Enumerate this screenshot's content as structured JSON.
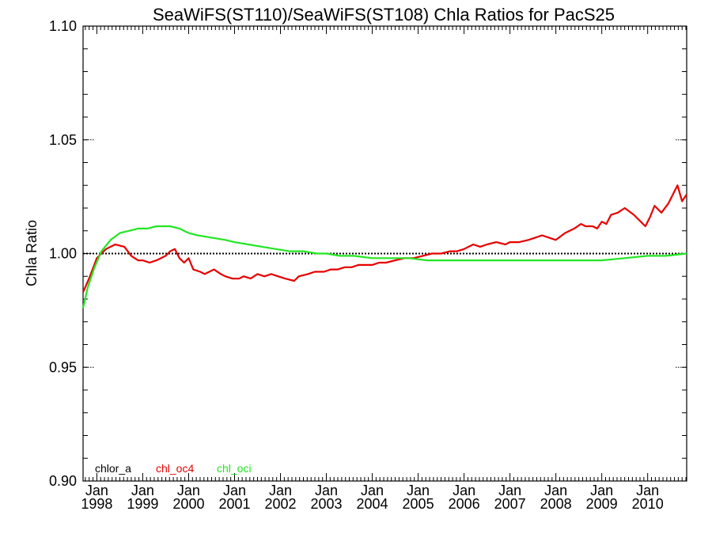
{
  "chart_data": {
    "type": "line",
    "title": "SeaWiFS(ST110)/SeaWiFS(ST108)  Chla Ratios for PacS25",
    "xlabel": "",
    "ylabel": "Chla Ratio",
    "xlim": [
      1997.7,
      2010.85
    ],
    "ylim": [
      0.9,
      1.1
    ],
    "y_ticks": [
      "0.90",
      "0.95",
      "1.00",
      "1.05",
      "1.10"
    ],
    "x_ticks": [
      {
        "month": "Jan",
        "year": "1998"
      },
      {
        "month": "Jan",
        "year": "1999"
      },
      {
        "month": "Jan",
        "year": "2000"
      },
      {
        "month": "Jan",
        "year": "2001"
      },
      {
        "month": "Jan",
        "year": "2002"
      },
      {
        "month": "Jan",
        "year": "2003"
      },
      {
        "month": "Jan",
        "year": "2004"
      },
      {
        "month": "Jan",
        "year": "2005"
      },
      {
        "month": "Jan",
        "year": "2006"
      },
      {
        "month": "Jan",
        "year": "2007"
      },
      {
        "month": "Jan",
        "year": "2008"
      },
      {
        "month": "Jan",
        "year": "2009"
      },
      {
        "month": "Jan",
        "year": "2010"
      }
    ],
    "series": [
      {
        "name": "chlor_a",
        "color": "#000000",
        "style": "dotted",
        "x": [
          1997.7,
          2010.85
        ],
        "values": [
          1.0,
          1.0
        ]
      },
      {
        "name": "chl_oc4",
        "color": "#e60000",
        "x": [
          1997.7,
          1997.85,
          1998.0,
          1998.2,
          1998.4,
          1998.6,
          1998.75,
          1998.9,
          1999.0,
          1999.15,
          1999.3,
          1999.4,
          1999.5,
          1999.6,
          1999.7,
          1999.8,
          1999.9,
          2000.0,
          2000.1,
          2000.25,
          2000.35,
          2000.45,
          2000.55,
          2000.7,
          2000.8,
          2000.95,
          2001.1,
          2001.2,
          2001.35,
          2001.5,
          2001.65,
          2001.8,
          2001.95,
          2002.1,
          2002.3,
          2002.4,
          2002.6,
          2002.75,
          2002.95,
          2003.1,
          2003.25,
          2003.4,
          2003.55,
          2003.7,
          2003.85,
          2004.0,
          2004.15,
          2004.3,
          2004.5,
          2004.7,
          2004.9,
          2005.1,
          2005.3,
          2005.5,
          2005.7,
          2005.85,
          2006.0,
          2006.2,
          2006.35,
          2006.5,
          2006.7,
          2006.9,
          2007.0,
          2007.2,
          2007.4,
          2007.55,
          2007.7,
          2007.85,
          2008.0,
          2008.2,
          2008.4,
          2008.55,
          2008.65,
          2008.8,
          2008.9,
          2009.0,
          2009.1,
          2009.2,
          2009.35,
          2009.5,
          2009.7,
          2009.85,
          2009.95,
          2010.05,
          2010.15,
          2010.3,
          2010.45,
          2010.55,
          2010.65,
          2010.75,
          2010.85
        ],
        "values": [
          0.983,
          0.99,
          0.998,
          1.002,
          1.004,
          1.003,
          0.999,
          0.997,
          0.997,
          0.996,
          0.997,
          0.998,
          0.999,
          1.001,
          1.002,
          0.998,
          0.996,
          0.998,
          0.993,
          0.992,
          0.991,
          0.992,
          0.993,
          0.991,
          0.99,
          0.989,
          0.989,
          0.99,
          0.989,
          0.991,
          0.99,
          0.991,
          0.99,
          0.989,
          0.988,
          0.99,
          0.991,
          0.992,
          0.992,
          0.993,
          0.993,
          0.994,
          0.994,
          0.995,
          0.995,
          0.995,
          0.996,
          0.996,
          0.997,
          0.998,
          0.998,
          0.999,
          1.0,
          1.0,
          1.001,
          1.001,
          1.002,
          1.004,
          1.003,
          1.004,
          1.005,
          1.004,
          1.005,
          1.005,
          1.006,
          1.007,
          1.008,
          1.007,
          1.006,
          1.009,
          1.011,
          1.013,
          1.012,
          1.012,
          1.011,
          1.014,
          1.013,
          1.017,
          1.018,
          1.02,
          1.017,
          1.014,
          1.012,
          1.016,
          1.021,
          1.018,
          1.022,
          1.026,
          1.03,
          1.023,
          1.026
        ]
      },
      {
        "name": "chl_oci",
        "color": "#22e622",
        "x": [
          1997.7,
          1997.8,
          1997.95,
          1998.1,
          1998.3,
          1998.5,
          1998.7,
          1998.9,
          1999.1,
          1999.3,
          1999.45,
          1999.6,
          1999.8,
          2000.0,
          2000.2,
          2000.5,
          2000.8,
          2001.0,
          2001.3,
          2001.6,
          2001.9,
          2002.2,
          2002.5,
          2002.8,
          2003.0,
          2003.3,
          2003.6,
          2004.0,
          2004.4,
          2004.8,
          2005.2,
          2005.6,
          2006.0,
          2006.5,
          2007.0,
          2007.5,
          2008.0,
          2008.5,
          2009.0,
          2009.5,
          2010.0,
          2010.4,
          2010.85
        ],
        "values": [
          0.976,
          0.985,
          0.994,
          1.001,
          1.006,
          1.009,
          1.01,
          1.011,
          1.011,
          1.012,
          1.012,
          1.012,
          1.011,
          1.009,
          1.008,
          1.007,
          1.006,
          1.005,
          1.004,
          1.003,
          1.002,
          1.001,
          1.001,
          1.0,
          1.0,
          0.999,
          0.999,
          0.998,
          0.998,
          0.998,
          0.997,
          0.997,
          0.997,
          0.997,
          0.997,
          0.997,
          0.997,
          0.997,
          0.997,
          0.998,
          0.999,
          0.999,
          1.0
        ]
      }
    ],
    "legend_position": "bottom-left",
    "grid": false
  }
}
